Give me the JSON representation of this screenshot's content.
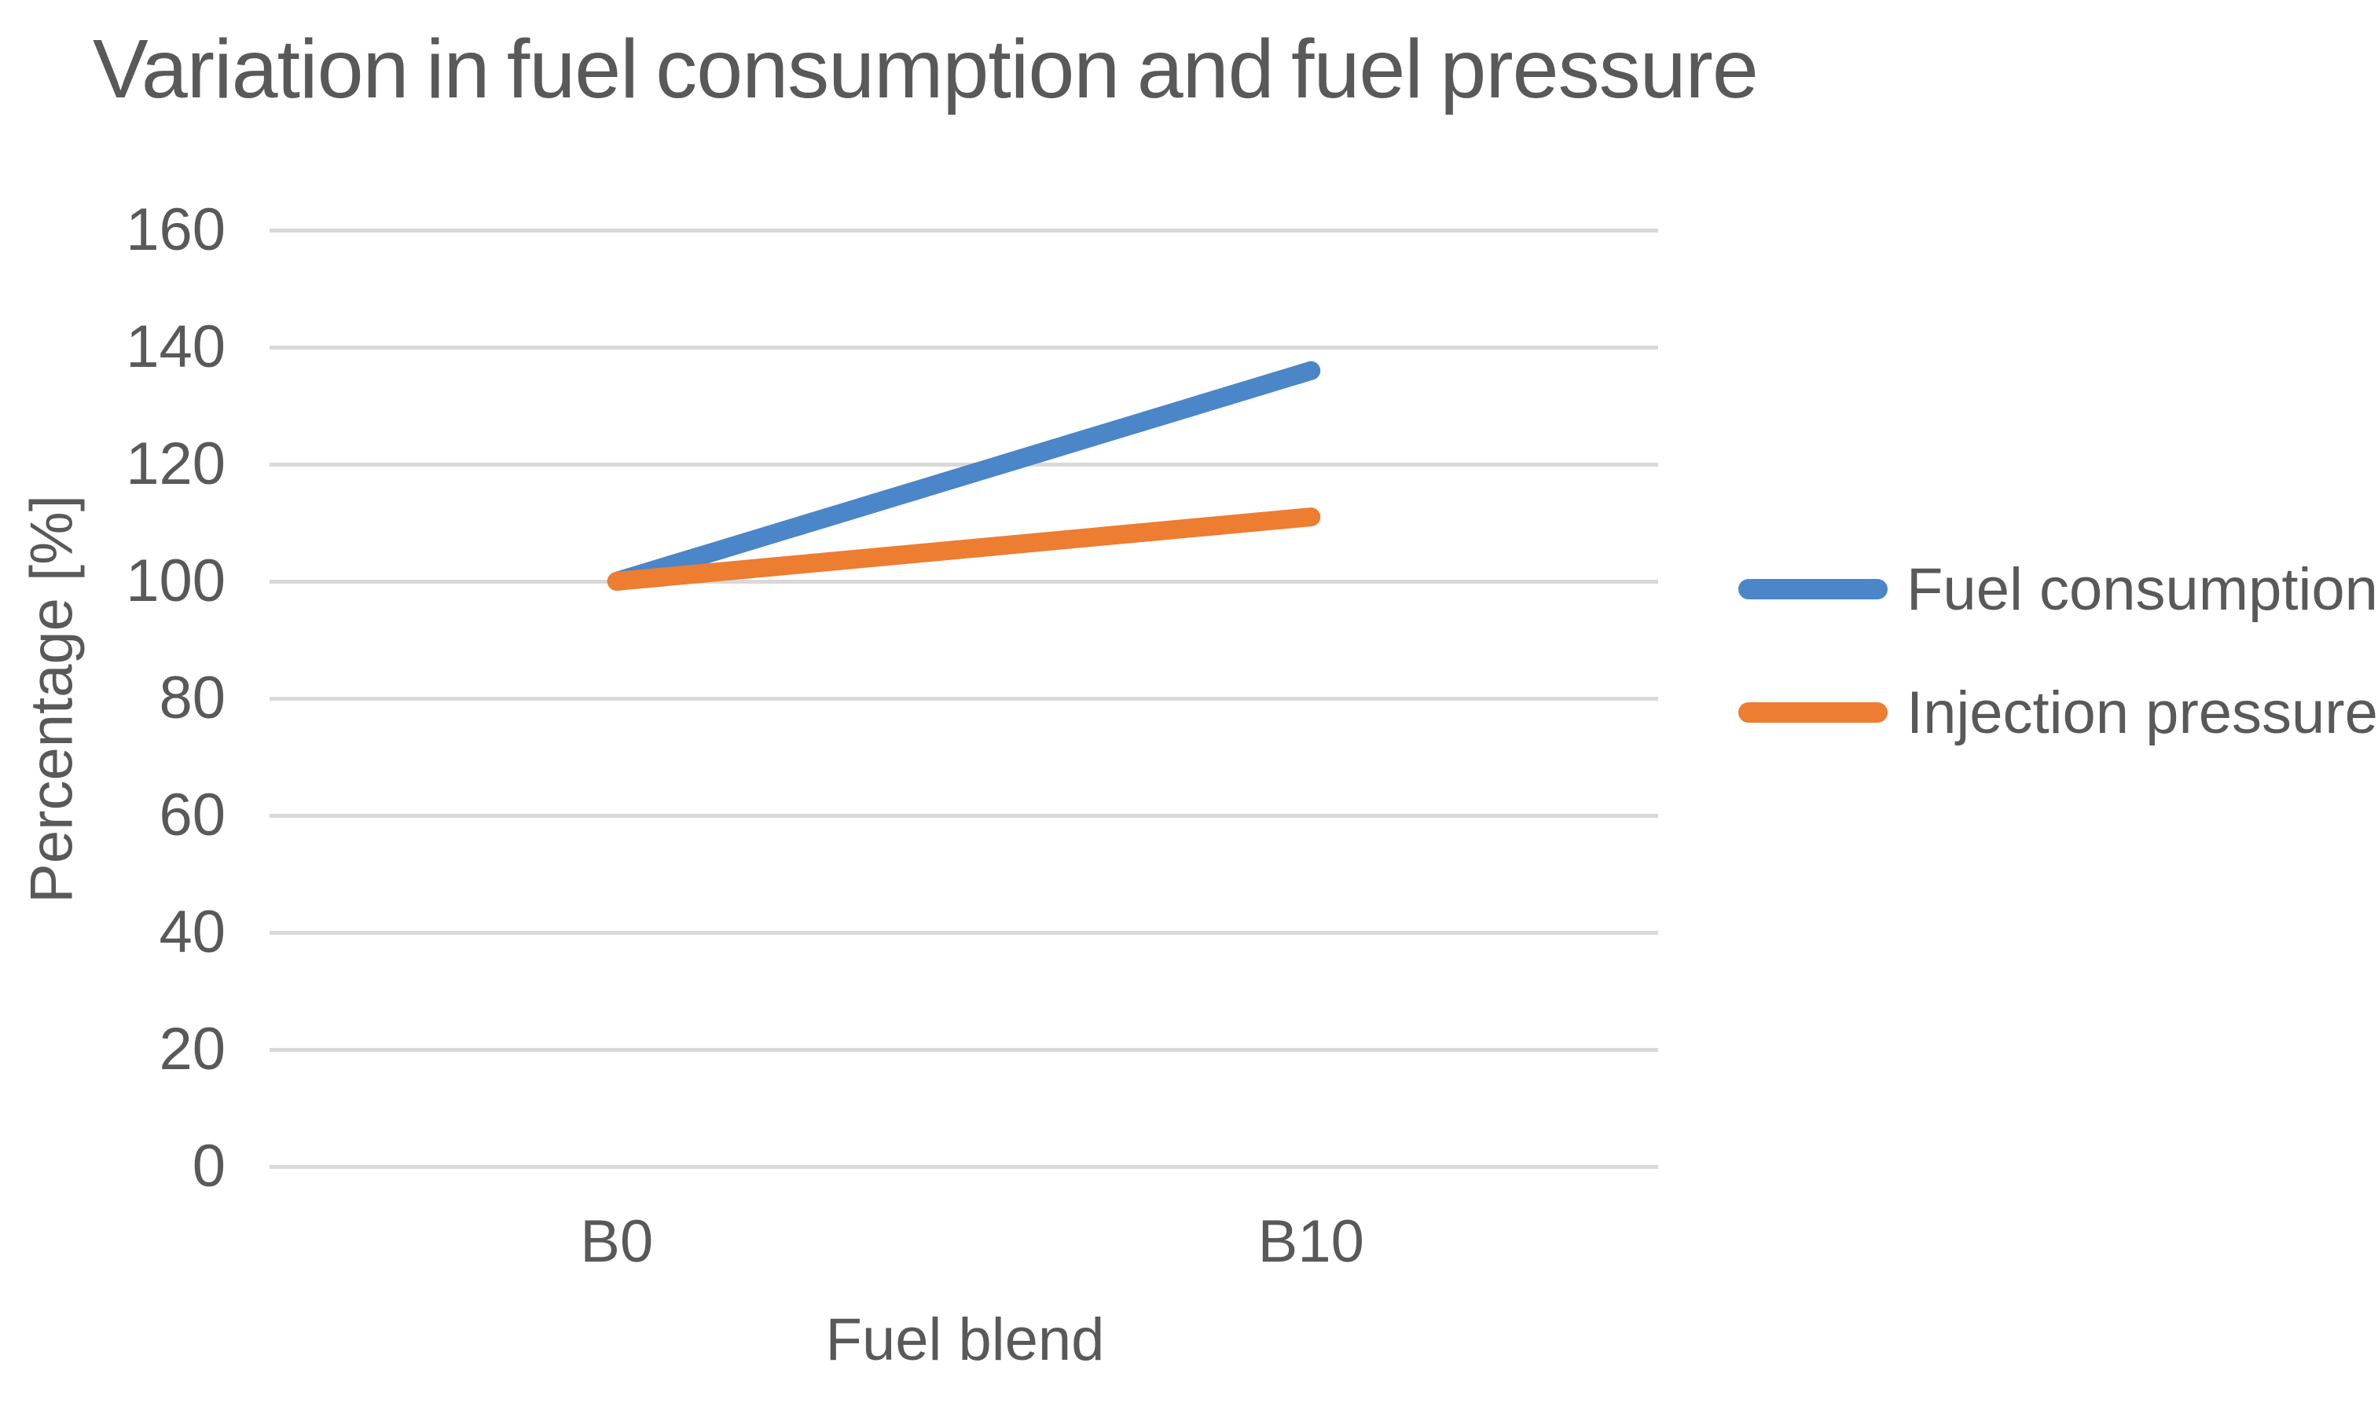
{
  "chart_data": {
    "type": "line",
    "title": "Variation in fuel consumption and fuel pressure",
    "xlabel": "Fuel blend",
    "ylabel": "Percentage [%]",
    "categories": [
      "B0",
      "B10"
    ],
    "series": [
      {
        "name": "Fuel consumption",
        "values": [
          100,
          136
        ],
        "color": "#4A86C8"
      },
      {
        "name": "Injection pressure",
        "values": [
          100,
          111
        ],
        "color": "#ED7D31"
      }
    ],
    "ylim": [
      0,
      160
    ],
    "ytick_step": 20,
    "yticks": [
      0,
      20,
      40,
      60,
      80,
      100,
      120,
      140,
      160
    ],
    "grid": true,
    "legend_position": "right",
    "colors": {
      "text": "#595959",
      "gridline": "#D9D9D9",
      "background": "#FFFFFF"
    }
  }
}
